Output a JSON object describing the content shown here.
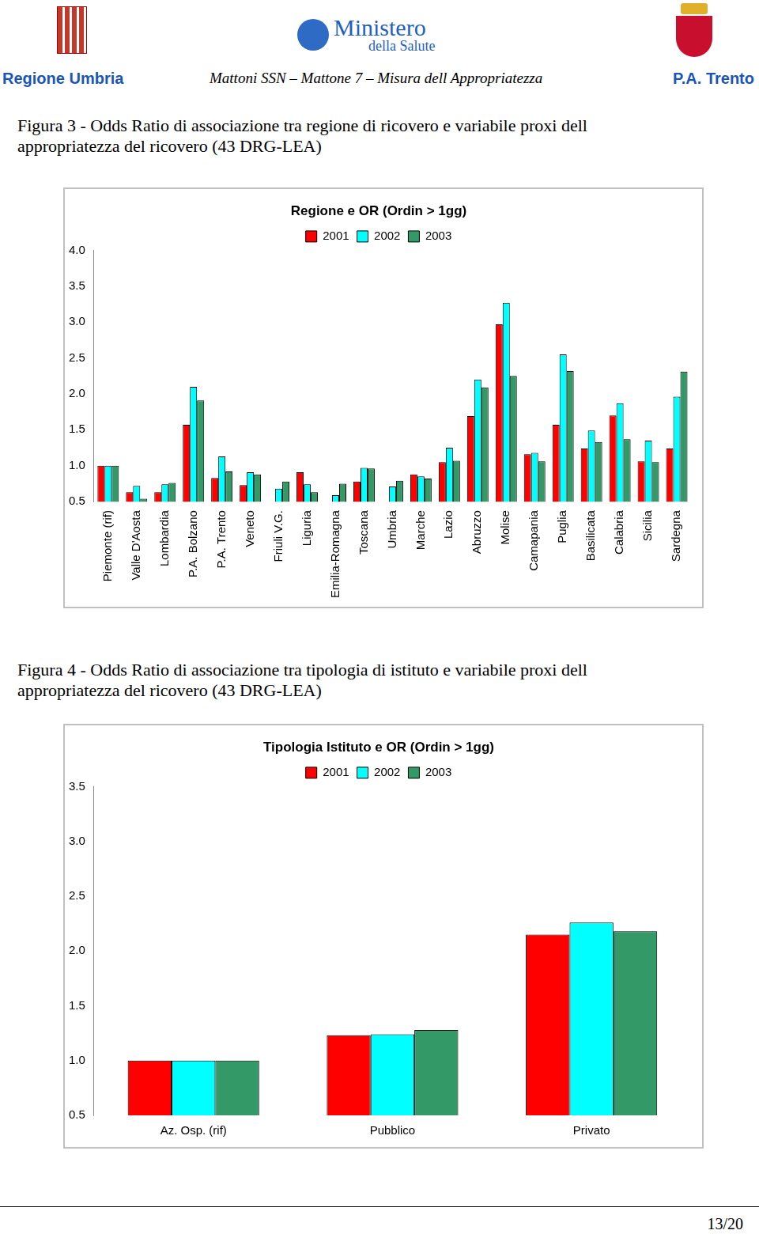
{
  "header": {
    "left": "Regione Umbria",
    "center": "Mattoni SSN – Mattone 7 – Misura dell Appropriatezza",
    "right": "P.A. Trento",
    "logo_text": [
      "Ministero",
      "della Salute"
    ]
  },
  "figures": [
    {
      "caption": "Figura 3 - Odds Ratio di associazione tra regione di ricovero e variabile proxi dell appropriatezza del ricovero (43 DRG-LEA)"
    },
    {
      "caption": "Figura 4 - Odds Ratio di associazione tra tipologia di istituto e variabile proxi dell appropriatezza del ricovero (43 DRG-LEA)"
    }
  ],
  "chart_data": [
    {
      "type": "bar",
      "title": "Regione e OR (Ordin > 1gg)",
      "categories": [
        "Piemonte (rif)",
        "Valle D'Aosta",
        "Lombardia",
        "P.A. Bolzano",
        "P.A. Trento",
        "Veneto",
        "Friuli V.G.",
        "Liguria",
        "Emilia-Romagna",
        "Toscana",
        "Umbria",
        "Marche",
        "Lazio",
        "Abruzzo",
        "Molise",
        "Camapania",
        "Puglia",
        "Basilicata",
        "Calabria",
        "Sicilia",
        "Sardegna"
      ],
      "series": [
        {
          "name": "2001",
          "color": "#ff0000",
          "values": [
            1.0,
            0.63,
            0.63,
            1.57,
            0.83,
            0.73,
            null,
            0.91,
            null,
            0.78,
            null,
            0.88,
            1.05,
            1.69,
            2.97,
            1.16,
            1.57,
            1.24,
            1.7,
            1.06,
            1.24
          ]
        },
        {
          "name": "2002",
          "color": "#00ffff",
          "values": [
            1.0,
            0.72,
            0.74,
            2.1,
            1.13,
            0.91,
            0.68,
            0.74,
            0.59,
            0.97,
            0.71,
            0.85,
            1.25,
            2.2,
            3.27,
            1.18,
            2.55,
            1.49,
            1.87,
            1.35,
            1.96
          ]
        },
        {
          "name": "2003",
          "color": "#339966",
          "values": [
            1.0,
            0.54,
            0.76,
            1.91,
            0.92,
            0.88,
            0.78,
            0.63,
            0.75,
            0.96,
            0.79,
            0.82,
            1.07,
            2.09,
            2.25,
            1.06,
            2.32,
            1.33,
            1.37,
            1.05,
            2.31
          ]
        }
      ],
      "ylim": [
        0.5,
        4
      ],
      "yticks": [
        0.5,
        {
          "value": 1,
          "label": "1.0"
        },
        1.5,
        {
          "value": 2,
          "label": "2.0"
        },
        2.5,
        {
          "value": 3,
          "label": "3.0"
        },
        3.5,
        {
          "value": 4,
          "label": "4.0"
        }
      ],
      "grid": false,
      "legend": "top"
    },
    {
      "type": "bar",
      "title": "Tipologia Istituto e OR (Ordin > 1gg)",
      "categories": [
        "Az. Osp. (rif)",
        "Pubblico",
        "Privato"
      ],
      "series": [
        {
          "name": "2001",
          "color": "#ff0000",
          "values": [
            1.0,
            1.23,
            2.15
          ]
        },
        {
          "name": "2002",
          "color": "#00ffff",
          "values": [
            1.0,
            1.24,
            2.26
          ]
        },
        {
          "name": "2003",
          "color": "#339966",
          "values": [
            1.0,
            1.28,
            2.18
          ]
        }
      ],
      "ylim": [
        0.5,
        3.5
      ],
      "yticks": [
        0.5,
        {
          "value": 1,
          "label": "1.0"
        },
        1.5,
        {
          "value": 2,
          "label": "2.0"
        },
        2.5,
        {
          "value": 3,
          "label": "3.0"
        },
        3.5
      ],
      "grid": false,
      "legend": "top"
    }
  ],
  "footer": {
    "page": "13/20"
  }
}
